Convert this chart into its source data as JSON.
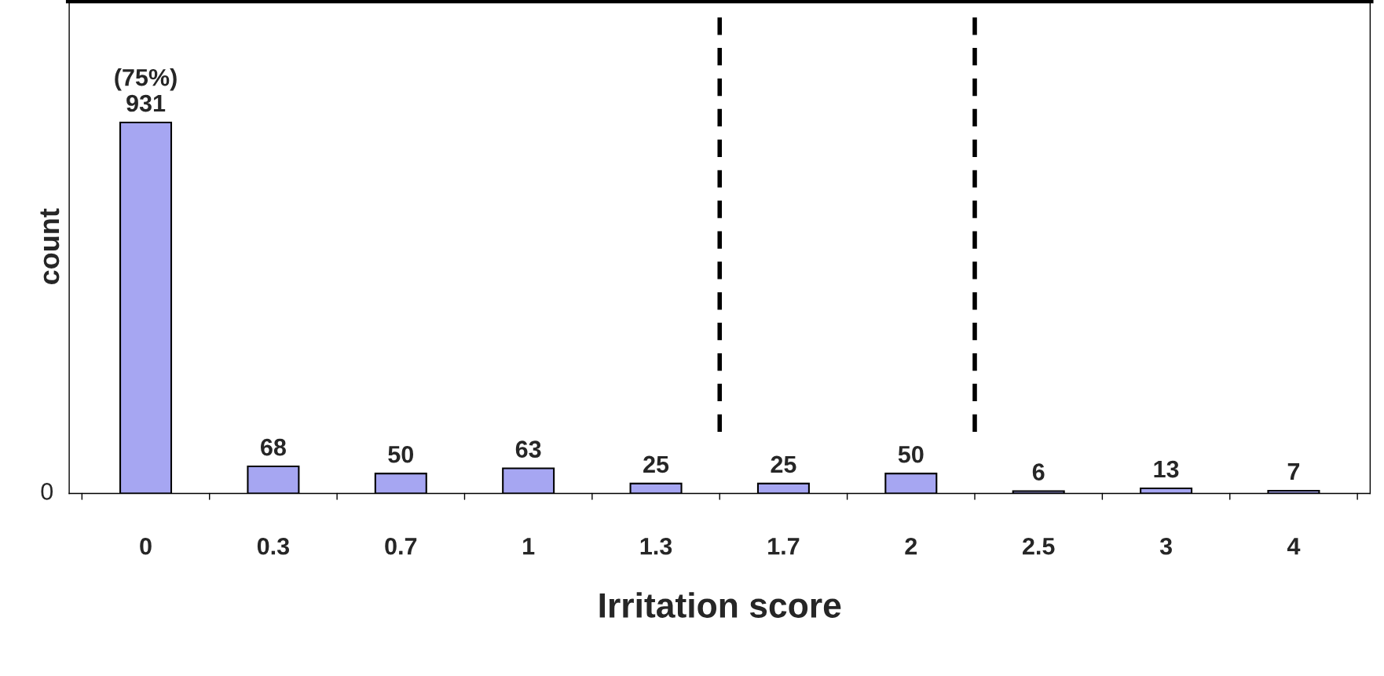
{
  "chart_data": {
    "type": "bar",
    "xlabel": "Irritation score",
    "ylabel": "count",
    "categories": [
      "0",
      "0.3",
      "0.7",
      "1",
      "1.3",
      "1.7",
      "2",
      "2.5",
      "3",
      "4"
    ],
    "values": [
      931,
      68,
      50,
      63,
      25,
      25,
      50,
      6,
      13,
      7
    ],
    "value_labels": [
      "(75%)\n931",
      "68",
      "50",
      "63",
      "25",
      "25",
      "50",
      "6",
      "13",
      "7"
    ],
    "color": "#9999ff",
    "annotations": [
      "0"
    ]
  }
}
